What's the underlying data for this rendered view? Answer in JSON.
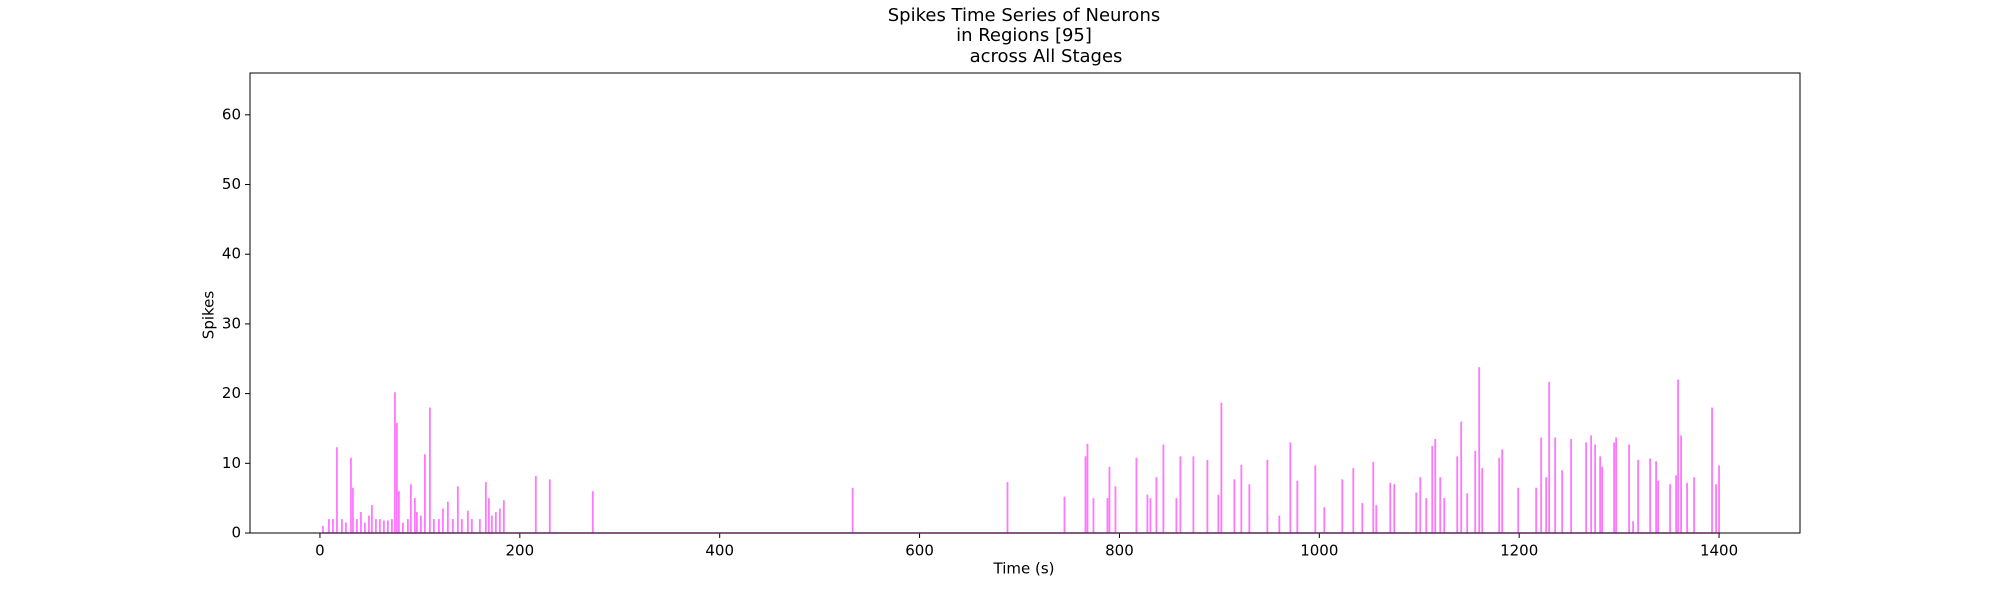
{
  "chart_data": {
    "type": "spike",
    "title": [
      "Spikes Time Series of Neurons",
      "in Regions [95]",
      "across All Stages"
    ],
    "x_label": "Time (s)",
    "y_label": "Spikes",
    "color": "#ff77ff",
    "xlim": [
      -70,
      1481
    ],
    "ylim": [
      0,
      66
    ],
    "xticks": [
      0,
      200,
      400,
      600,
      800,
      1000,
      1200,
      1400
    ],
    "yticks": [
      0,
      10,
      20,
      30,
      40,
      50,
      60
    ],
    "x": [
      3,
      9,
      13,
      17,
      22,
      26,
      31,
      33,
      37,
      41,
      45,
      49,
      52,
      56,
      60,
      64,
      68,
      72,
      75,
      77,
      79,
      83,
      88,
      91,
      95,
      97,
      101,
      105,
      110,
      114,
      119,
      123,
      128,
      133,
      138,
      142,
      148,
      152,
      160,
      166,
      169,
      172,
      176,
      180,
      184,
      216,
      230,
      273,
      533,
      688,
      745,
      766,
      768,
      774,
      788,
      790,
      796,
      817,
      828,
      831,
      837,
      844,
      857,
      861,
      874,
      888,
      899,
      902,
      915,
      922,
      930,
      948,
      960,
      971,
      978,
      996,
      1005,
      1023,
      1034,
      1043,
      1054,
      1057,
      1071,
      1075,
      1097,
      1101,
      1107,
      1113,
      1116,
      1121,
      1125,
      1138,
      1142,
      1148,
      1156,
      1160,
      1163,
      1180,
      1183,
      1199,
      1217,
      1222,
      1227,
      1230,
      1236,
      1243,
      1252,
      1267,
      1272,
      1276,
      1281,
      1283,
      1295,
      1297,
      1310,
      1314,
      1319,
      1331,
      1337,
      1339,
      1351,
      1357,
      1359,
      1362,
      1368,
      1375,
      1393,
      1397,
      1400
    ],
    "values": [
      1,
      2,
      2,
      12.3,
      2,
      1.5,
      10.8,
      6.5,
      2,
      3,
      1.5,
      2.5,
      4,
      2,
      2,
      1.8,
      1.8,
      2,
      20.2,
      15.8,
      6,
      1.5,
      2,
      7,
      5,
      3,
      2.5,
      11.3,
      18,
      2,
      2,
      3.5,
      4.5,
      2,
      6.7,
      2,
      3.2,
      2,
      2,
      7.3,
      5,
      2.5,
      3,
      3.5,
      4.7,
      8.2,
      7.7,
      6,
      6.5,
      7.3,
      5.2,
      11,
      12.8,
      5,
      5,
      9.5,
      6.7,
      10.8,
      5.5,
      5,
      8,
      12.7,
      5,
      11,
      11,
      10.5,
      5.5,
      18.7,
      7.7,
      9.8,
      7,
      10.5,
      2.5,
      13,
      7.5,
      9.7,
      3.7,
      7.7,
      9.3,
      4.3,
      10.2,
      4,
      7.2,
      7,
      5.8,
      8,
      5,
      12.5,
      13.5,
      8,
      5,
      11,
      16,
      5.7,
      11.8,
      23.8,
      9.3,
      10.8,
      12,
      6.5,
      6.5,
      13.7,
      8,
      21.7,
      13.7,
      9,
      13.5,
      13,
      14,
      12.7,
      11,
      9.5,
      13,
      13.7,
      12.7,
      1.7,
      10.5,
      10.7,
      10.3,
      7.5,
      7,
      8.3,
      22,
      14,
      7.2,
      8,
      18,
      7,
      9.7
    ]
  }
}
